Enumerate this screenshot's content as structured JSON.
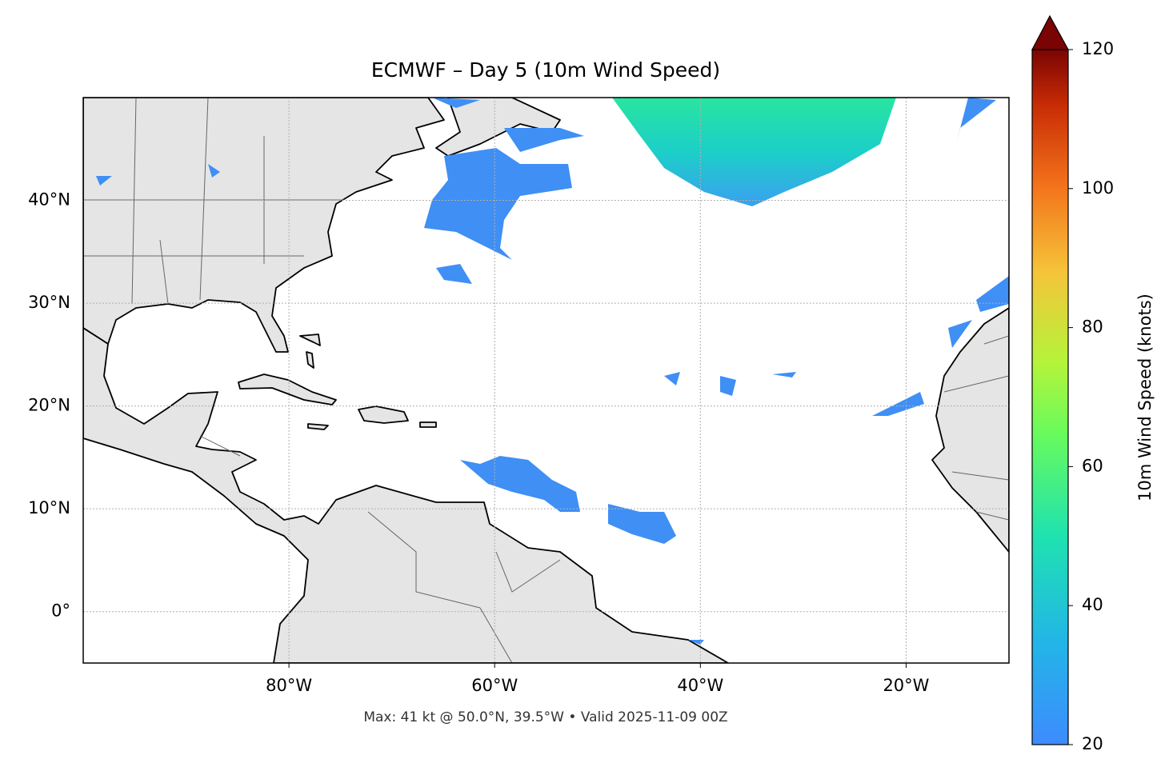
{
  "chart_data": {
    "type": "map",
    "title": "ECMWF – Day 5 (10m Wind Speed)",
    "xlim": [
      -100,
      -10
    ],
    "ylim": [
      -5,
      50
    ],
    "xticks": [
      {
        "value": -80,
        "label": "80°W"
      },
      {
        "value": -60,
        "label": "60°W"
      },
      {
        "value": -40,
        "label": "40°W"
      },
      {
        "value": -20,
        "label": "20°W"
      }
    ],
    "yticks": [
      {
        "value": 0,
        "label": "0°"
      },
      {
        "value": 10,
        "label": "10°N"
      },
      {
        "value": 20,
        "label": "20°N"
      },
      {
        "value": 30,
        "label": "30°N"
      },
      {
        "value": 40,
        "label": "40°N"
      }
    ],
    "grid": true,
    "colorbar": {
      "label": "10m Wind Speed (knots)",
      "lim": [
        20,
        120
      ],
      "ticks": [
        20,
        40,
        60,
        80,
        100,
        120
      ]
    },
    "annotation": "Max: 41 kt @ 50.0°N, 39.5°W • Valid 2025-11-09 00Z"
  }
}
